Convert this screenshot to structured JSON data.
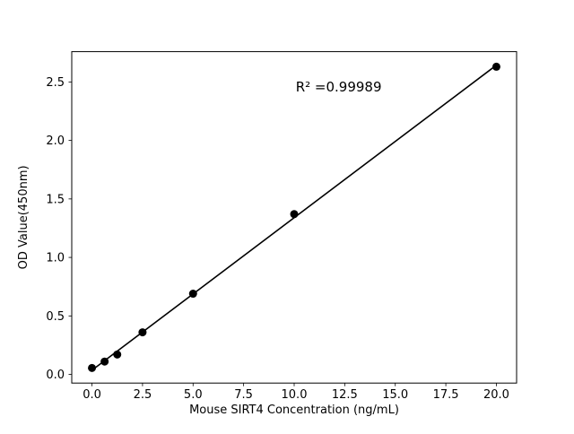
{
  "figure": {
    "background": "#ffffff"
  },
  "chart_data": {
    "type": "scatter",
    "title": "",
    "xlabel": "Mouse SIRT4 Concentration (ng/mL)",
    "ylabel": "OD Value(450nm)",
    "x": [
      0,
      0.625,
      1.25,
      2.5,
      5,
      10,
      20
    ],
    "y": [
      0.055,
      0.11,
      0.17,
      0.36,
      0.69,
      1.37,
      2.63
    ],
    "fit": "linear",
    "annotation": {
      "text": "R² =0.99989",
      "x": 12.2,
      "y": 2.42
    },
    "xlim": [
      -1,
      21
    ],
    "ylim": [
      -0.074,
      2.759
    ],
    "xticks": [
      0,
      2.5,
      5,
      7.5,
      10,
      12.5,
      15,
      17.5,
      20
    ],
    "xtick_labels": [
      "0.0",
      "2.5",
      "5.0",
      "7.5",
      "10.0",
      "12.5",
      "15.0",
      "17.5",
      "20.0"
    ],
    "yticks": [
      0,
      0.5,
      1.0,
      1.5,
      2.0,
      2.5
    ],
    "ytick_labels": [
      "0.0",
      "0.5",
      "1.0",
      "1.5",
      "2.0",
      "2.5"
    ],
    "grid": false,
    "legend": null,
    "marker_color": "#000000",
    "line_color": "#000000",
    "axes_color": "#000000"
  }
}
